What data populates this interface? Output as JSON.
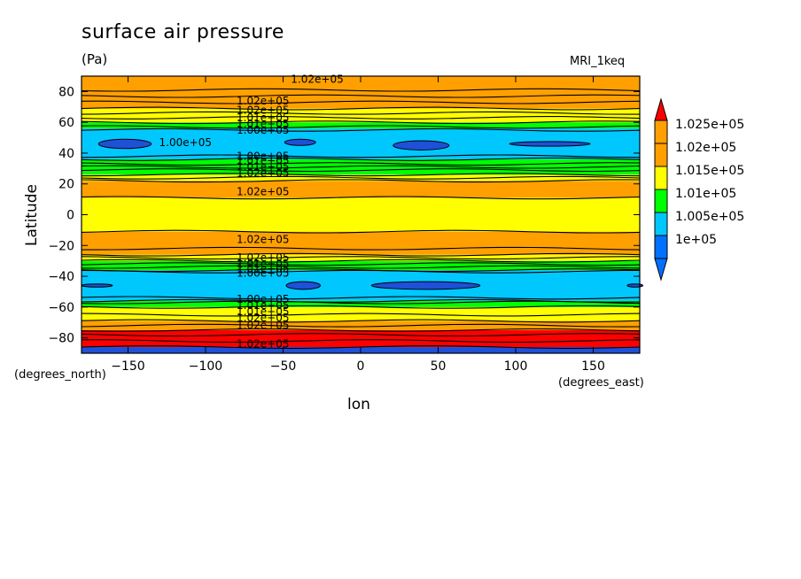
{
  "chart_data": {
    "type": "heatmap",
    "title": "surface air pressure",
    "units": "(Pa)",
    "model": "MRI_1keq",
    "xlabel": "lon",
    "ylabel": "Latitude",
    "xunits": "(degrees_east)",
    "yunits": "(degrees_north)",
    "xlim": [
      -180,
      180
    ],
    "ylim": [
      -90,
      90
    ],
    "x_ticks": [
      -150,
      -100,
      -50,
      0,
      50,
      100,
      150
    ],
    "y_ticks": [
      -80,
      -60,
      -40,
      -20,
      0,
      20,
      40,
      60,
      80
    ],
    "levels": [
      100000,
      100500,
      101000,
      101500,
      102000,
      102500
    ],
    "colorbar": {
      "labels": [
        "1e+05",
        "1.005e+05",
        "1.01e+05",
        "1.015e+05",
        "1.02e+05",
        "1.025e+05"
      ],
      "colors": [
        "#0070ff",
        "#00c8ff",
        "#00ff00",
        "#ffff00",
        "#ffa000",
        "#ff0000",
        "#1e50d8"
      ]
    },
    "bands": [
      {
        "lat_from": -90,
        "lat_to": -86,
        "value": 102600
      },
      {
        "lat_from": -86,
        "lat_to": -75,
        "value": 102200
      },
      {
        "lat_from": -75,
        "lat_to": -69,
        "value": 101800
      },
      {
        "lat_from": -69,
        "lat_to": -60,
        "value": 101300
      },
      {
        "lat_from": -60,
        "lat_to": -56,
        "value": 100800
      },
      {
        "lat_from": -56,
        "lat_to": -36,
        "value": 100300
      },
      {
        "lat_from": -36,
        "lat_to": -30,
        "value": 100800
      },
      {
        "lat_from": -30,
        "lat_to": -26,
        "value": 101300
      },
      {
        "lat_from": -26,
        "lat_to": -11,
        "value": 101700
      },
      {
        "lat_from": -11,
        "lat_to": 11,
        "value": 101300
      },
      {
        "lat_from": 11,
        "lat_to": 22,
        "value": 101700
      },
      {
        "lat_from": 22,
        "lat_to": 26,
        "value": 101300
      },
      {
        "lat_from": 26,
        "lat_to": 36,
        "value": 100800
      },
      {
        "lat_from": 36,
        "lat_to": 56,
        "value": 100300
      },
      {
        "lat_from": 56,
        "lat_to": 60,
        "value": 100800
      },
      {
        "lat_from": 60,
        "lat_to": 69,
        "value": 101300
      },
      {
        "lat_from": 69,
        "lat_to": 90,
        "value": 101800
      }
    ],
    "contour_lats": [
      -86,
      -82,
      -78,
      -75,
      -72,
      -69,
      -65,
      -60,
      -57,
      -56,
      -54,
      -37,
      -36,
      -34,
      -32,
      -30,
      -28,
      -26,
      -22,
      -11,
      11,
      22,
      24,
      26,
      29,
      31,
      33,
      36,
      38,
      55,
      57,
      60,
      63,
      66,
      69,
      73,
      77,
      81
    ],
    "low_cells": [
      {
        "lon": -152,
        "lat": 46,
        "rx": 17,
        "ry": 3
      },
      {
        "lon": -39,
        "lat": 47,
        "rx": 10,
        "ry": 2
      },
      {
        "lon": 39,
        "lat": 45,
        "rx": 18,
        "ry": 3
      },
      {
        "lon": 122,
        "lat": 46,
        "rx": 26,
        "ry": 1.5
      },
      {
        "lon": -37,
        "lat": -46,
        "rx": 11,
        "ry": 2.5
      },
      {
        "lon": 42,
        "lat": -46,
        "rx": 35,
        "ry": 2.5
      },
      {
        "lon": -170,
        "lat": -46,
        "rx": 10,
        "ry": 1
      },
      {
        "lon": 177,
        "lat": -46,
        "rx": 5,
        "ry": 1
      }
    ],
    "contour_labels": [
      {
        "text": "1.02e+05",
        "lon": -28,
        "lat": 88
      },
      {
        "text": "1.02e+05",
        "lon": -63,
        "lat": 74
      },
      {
        "text": "1.02e+05",
        "lon": -63,
        "lat": 68
      },
      {
        "text": "1.01e+05",
        "lon": -63,
        "lat": 63
      },
      {
        "text": "1.01e+05",
        "lon": -63,
        "lat": 59
      },
      {
        "text": "1.00e+05",
        "lon": -63,
        "lat": 55
      },
      {
        "text": "1.00e+05",
        "lon": -113,
        "lat": 47
      },
      {
        "text": "1.00e+05",
        "lon": -63,
        "lat": 38
      },
      {
        "text": "1.01e+05",
        "lon": -63,
        "lat": 35
      },
      {
        "text": "1.01e+05",
        "lon": -63,
        "lat": 31
      },
      {
        "text": "1.02e+05",
        "lon": -63,
        "lat": 27
      },
      {
        "text": "1.02e+05",
        "lon": -63,
        "lat": 15
      },
      {
        "text": "1.02e+05",
        "lon": -63,
        "lat": -16
      },
      {
        "text": "1.02e+05",
        "lon": -63,
        "lat": -28
      },
      {
        "text": "1.01e+05",
        "lon": -63,
        "lat": -32
      },
      {
        "text": "1.01e+05",
        "lon": -63,
        "lat": -35
      },
      {
        "text": "1.00e+05",
        "lon": -63,
        "lat": -38
      },
      {
        "text": "1.00e+05",
        "lon": -63,
        "lat": -55
      },
      {
        "text": "1.01e+05",
        "lon": -63,
        "lat": -59
      },
      {
        "text": "1.01e+05",
        "lon": -63,
        "lat": -63
      },
      {
        "text": "1.02e+05",
        "lon": -63,
        "lat": -67
      },
      {
        "text": "1.02e+05",
        "lon": -63,
        "lat": -72
      },
      {
        "text": "1.02e+05",
        "lon": -63,
        "lat": -84
      }
    ]
  }
}
